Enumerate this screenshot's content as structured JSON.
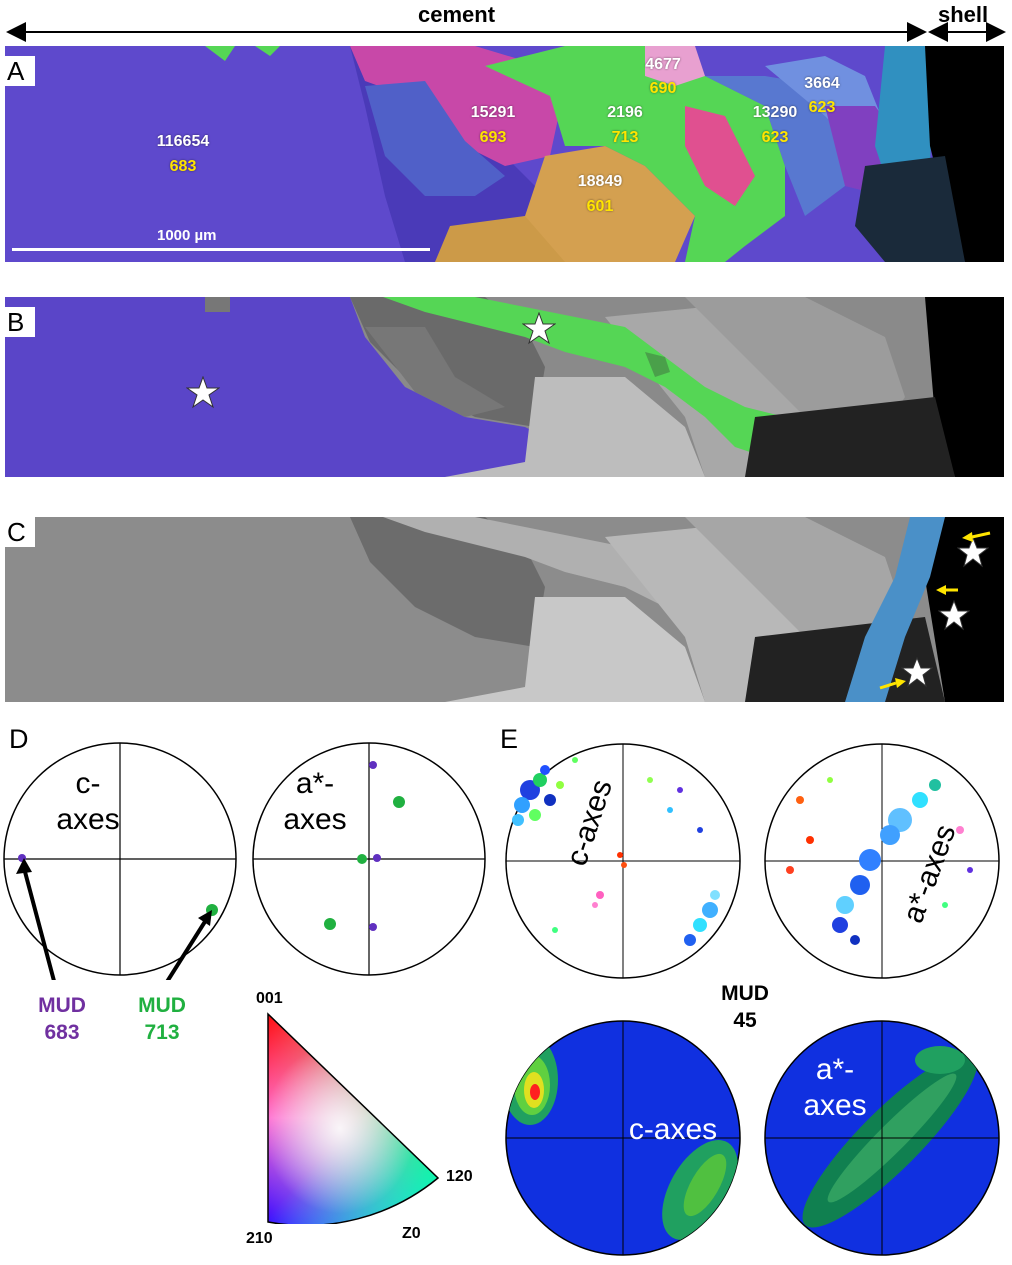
{
  "header": {
    "left_label": "cement",
    "right_label": "shell"
  },
  "panels": {
    "A": "A",
    "B": "B",
    "C": "C",
    "D": "D",
    "E": "E"
  },
  "panel_a": {
    "scale_bar": "1000 µm",
    "grains": [
      {
        "area": "116654",
        "mud": "683"
      },
      {
        "area": "15291",
        "mud": "693"
      },
      {
        "area": "2196",
        "mud": "713"
      },
      {
        "area": "4677",
        "mud": "690"
      },
      {
        "area": "18849",
        "mud": "601"
      },
      {
        "area": "13290",
        "mud": "623"
      },
      {
        "area": "3664",
        "mud": "623"
      }
    ]
  },
  "panel_d": {
    "c_axes": "c-\naxes",
    "a_axes": "a*-\naxes",
    "mud_purple": "MUD\n683",
    "mud_green": "MUD\n713"
  },
  "legend": {
    "top": "001",
    "right": "120",
    "bottom_left": "210",
    "bottom_right": "Z0"
  },
  "panel_e": {
    "c_axes": "c-axes",
    "a_axes": "a*-axes",
    "mud": "MUD\n45",
    "c_axes_contour": "c-axes",
    "a_axes_contour": "a*-\naxes"
  },
  "colors": {
    "grain_purple": "#5a45c8",
    "grain_green": "#55d655",
    "grain_magenta": "#c848a8",
    "grain_orange": "#d4a050",
    "contour_blue": "#1030e0",
    "mud_purple_text": "#7030a0",
    "mud_green_text": "#20b040",
    "grain_value_yellow": "#ffe500"
  }
}
